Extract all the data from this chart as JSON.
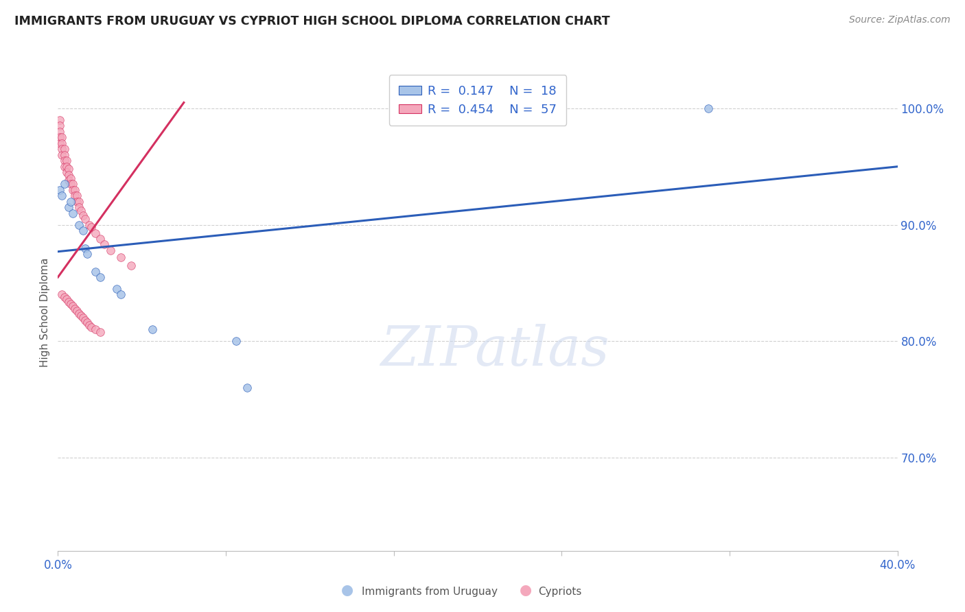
{
  "title": "IMMIGRANTS FROM URUGUAY VS CYPRIOT HIGH SCHOOL DIPLOMA CORRELATION CHART",
  "source": "Source: ZipAtlas.com",
  "ylabel": "High School Diploma",
  "xlim": [
    0.0,
    0.4
  ],
  "ylim": [
    0.62,
    1.03
  ],
  "xtick_positions": [
    0.0,
    0.08,
    0.16,
    0.24,
    0.32,
    0.4
  ],
  "xtick_labels": [
    "0.0%",
    "",
    "",
    "",
    "",
    "40.0%"
  ],
  "ytick_positions_right": [
    0.7,
    0.8,
    0.9,
    1.0
  ],
  "ytick_labels_right": [
    "70.0%",
    "80.0%",
    "90.0%",
    "100.0%"
  ],
  "legend_blue_r": "0.147",
  "legend_blue_n": "18",
  "legend_pink_r": "0.454",
  "legend_pink_n": "57",
  "legend_label_blue": "Immigrants from Uruguay",
  "legend_label_pink": "Cypriots",
  "blue_scatter_x": [
    0.001,
    0.002,
    0.003,
    0.005,
    0.006,
    0.007,
    0.01,
    0.012,
    0.013,
    0.014,
    0.018,
    0.02,
    0.028,
    0.03,
    0.045,
    0.085,
    0.09,
    0.31
  ],
  "blue_scatter_y": [
    0.93,
    0.925,
    0.935,
    0.915,
    0.92,
    0.91,
    0.9,
    0.895,
    0.88,
    0.875,
    0.86,
    0.855,
    0.845,
    0.84,
    0.81,
    0.8,
    0.76,
    1.0
  ],
  "blue_trend_x": [
    0.0,
    0.4
  ],
  "blue_trend_y": [
    0.877,
    0.95
  ],
  "pink_scatter_x": [
    0.001,
    0.001,
    0.001,
    0.001,
    0.001,
    0.002,
    0.002,
    0.002,
    0.002,
    0.003,
    0.003,
    0.003,
    0.003,
    0.004,
    0.004,
    0.004,
    0.005,
    0.005,
    0.005,
    0.006,
    0.006,
    0.007,
    0.007,
    0.008,
    0.008,
    0.009,
    0.009,
    0.01,
    0.01,
    0.011,
    0.012,
    0.013,
    0.015,
    0.016,
    0.018,
    0.02,
    0.022,
    0.025,
    0.03,
    0.035,
    0.002,
    0.003,
    0.004,
    0.005,
    0.006,
    0.007,
    0.008,
    0.009,
    0.01,
    0.011,
    0.012,
    0.013,
    0.014,
    0.015,
    0.016,
    0.018,
    0.02
  ],
  "pink_scatter_y": [
    0.99,
    0.985,
    0.98,
    0.975,
    0.97,
    0.975,
    0.97,
    0.965,
    0.96,
    0.965,
    0.96,
    0.955,
    0.95,
    0.955,
    0.95,
    0.945,
    0.948,
    0.943,
    0.938,
    0.94,
    0.935,
    0.935,
    0.93,
    0.93,
    0.925,
    0.925,
    0.92,
    0.92,
    0.915,
    0.912,
    0.908,
    0.905,
    0.9,
    0.898,
    0.893,
    0.888,
    0.883,
    0.878,
    0.872,
    0.865,
    0.84,
    0.838,
    0.836,
    0.834,
    0.832,
    0.83,
    0.828,
    0.826,
    0.824,
    0.822,
    0.82,
    0.818,
    0.816,
    0.814,
    0.812,
    0.81,
    0.808
  ],
  "pink_trend_x": [
    0.0,
    0.06
  ],
  "pink_trend_y": [
    0.855,
    1.005
  ],
  "blue_color": "#a8c4e8",
  "pink_color": "#f4a8bc",
  "blue_line_color": "#2b5db8",
  "pink_line_color": "#d43060",
  "scatter_size": 70,
  "watermark_text": "ZIPatlas",
  "grid_color": "#d0d0d0",
  "title_color": "#222222",
  "axis_label_color": "#555555",
  "tick_color_blue": "#3366cc"
}
